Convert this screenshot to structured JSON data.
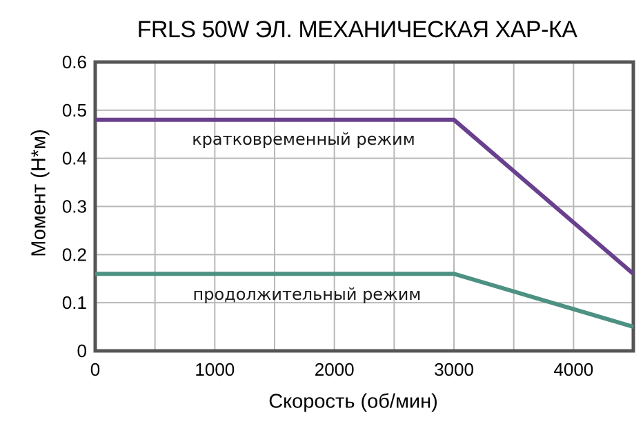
{
  "colors": {
    "background": "#ffffff",
    "frame": "#555555",
    "grid": "#b8b8b8",
    "text": "#000000",
    "series_short_term": "#69408e",
    "series_continuous": "#4d9183"
  },
  "chart_data": {
    "type": "line",
    "title": "FRLS 50W ЭЛ. МЕХАНИЧЕСКАЯ ХАР-КА",
    "xlabel": "Скорость (об/мин)",
    "ylabel": "Момент (Н*м)",
    "xlim": [
      0,
      4500
    ],
    "ylim": [
      0,
      0.6
    ],
    "x_ticks": [
      0,
      1000,
      2000,
      3000,
      4000
    ],
    "x_grid_step": 500,
    "y_ticks": [
      0,
      0.1,
      0.2,
      0.3,
      0.4,
      0.5,
      0.6
    ],
    "grid": true,
    "legend_position": "inline-annotations",
    "series": [
      {
        "name": "кратковременный режим",
        "color": "#69408e",
        "x": [
          0,
          3000,
          4500
        ],
        "values": [
          0.48,
          0.48,
          0.16
        ]
      },
      {
        "name": "продолжительный режим",
        "color": "#4d9183",
        "x": [
          0,
          3000,
          4500
        ],
        "values": [
          0.16,
          0.16,
          0.05
        ]
      }
    ],
    "annotations": [
      {
        "text": "кратковременный режим",
        "x": 1742,
        "y": 0.44
      },
      {
        "text": "продолжительный режим",
        "x": 1771,
        "y": 0.117
      }
    ]
  }
}
